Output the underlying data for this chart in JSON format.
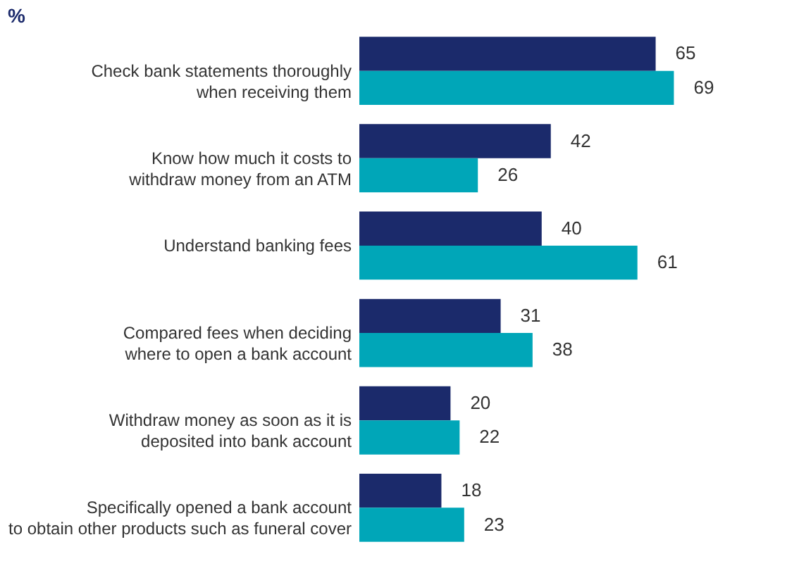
{
  "chart_data": {
    "type": "bar",
    "orientation": "horizontal",
    "title": "%",
    "categories": [
      "Check bank statements thoroughly\nwhen receiving them",
      "Know how much it costs to\nwithdraw money from an ATM",
      "Understand banking fees",
      "Compared fees when deciding\nwhere to open a bank account",
      "Withdraw money as soon as it is\ndeposited into bank account",
      "Specifically opened a bank account\nto obtain other products such as funeral cover"
    ],
    "series": [
      {
        "color": "#1b2a6b",
        "values": [
          65,
          42,
          40,
          31,
          20,
          18
        ]
      },
      {
        "color": "#00a6b8",
        "values": [
          69,
          26,
          61,
          38,
          22,
          23
        ]
      }
    ],
    "data_labels": true,
    "grid": false,
    "legend": false
  }
}
